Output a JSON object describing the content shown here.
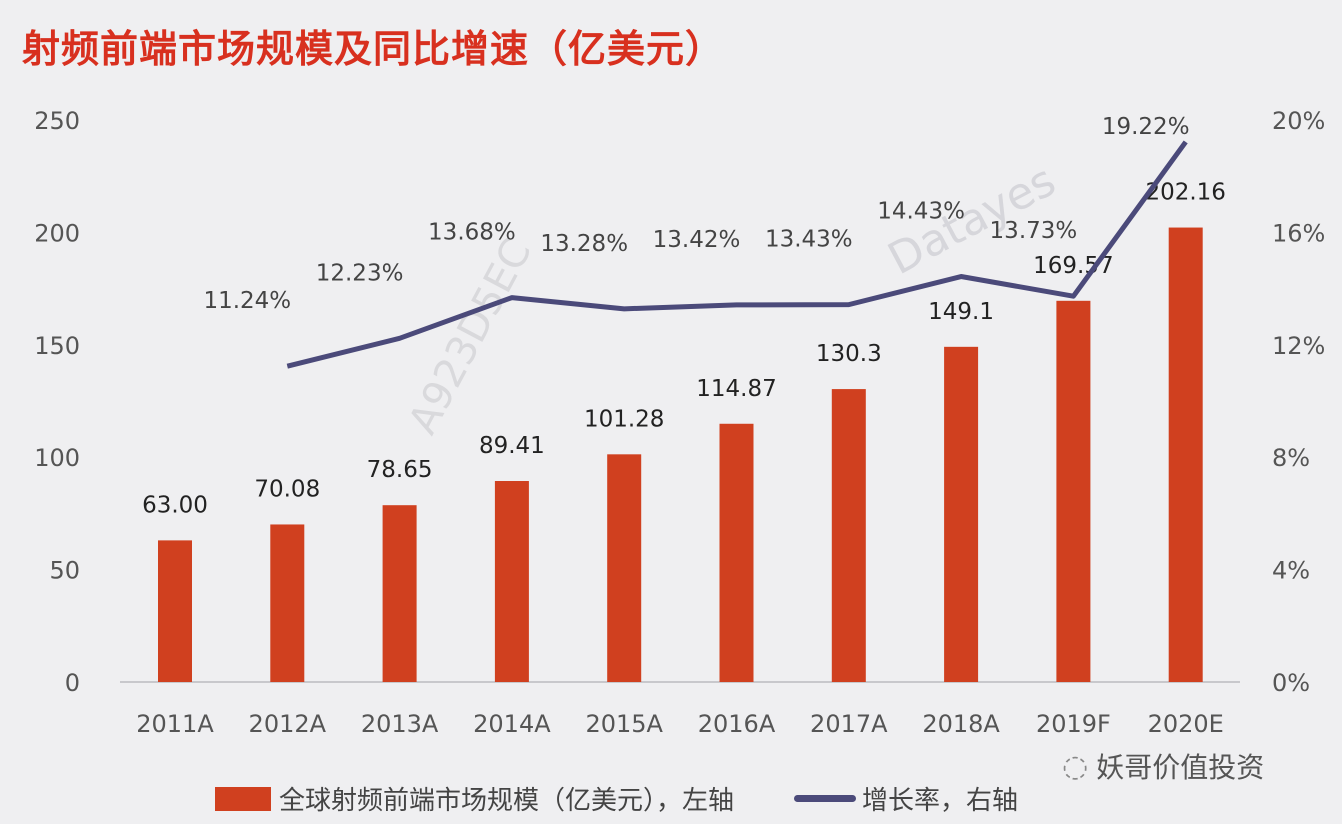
{
  "chart_data": {
    "type": "bar+line",
    "title": "射频前端市场规模及同比增速（亿美元）",
    "categories": [
      "2011A",
      "2012A",
      "2013A",
      "2014A",
      "2015A",
      "2016A",
      "2017A",
      "2018A",
      "2019F",
      "2020E"
    ],
    "series": [
      {
        "name": "全球射频前端市场规模（亿美元），左轴",
        "type": "bar",
        "axis": "left",
        "color": "#d0401f",
        "values": [
          63.0,
          70.08,
          78.65,
          89.41,
          101.28,
          114.87,
          130.3,
          149.1,
          169.57,
          202.16
        ],
        "labels": [
          "63.00",
          "70.08",
          "78.65",
          "89.41",
          "101.28",
          "114.87",
          "130.3",
          "149.1",
          "169.57",
          "202.16"
        ]
      },
      {
        "name": "增长率，右轴",
        "type": "line",
        "axis": "right",
        "color": "#4b4a7a",
        "values": [
          null,
          11.24,
          12.23,
          13.68,
          13.28,
          13.42,
          13.43,
          14.43,
          13.73,
          19.22
        ],
        "labels": [
          "",
          "11.24%",
          "12.23%",
          "13.68%",
          "13.28%",
          "13.42%",
          "13.43%",
          "14.43%",
          "13.73%",
          "19.22%"
        ]
      }
    ],
    "left_axis": {
      "range": [
        0,
        250
      ],
      "ticks": [
        "0",
        "50",
        "100",
        "150",
        "200",
        "250"
      ]
    },
    "right_axis": {
      "range": [
        0,
        20
      ],
      "ticks": [
        "0%",
        "4%",
        "8%",
        "12%",
        "16%",
        "20%"
      ]
    },
    "grid": false,
    "legend_position": "bottom"
  },
  "watermarks": [
    "A923D5EC",
    "Datayes"
  ],
  "brand": "妖哥价值投资",
  "legend": {
    "bar": "全球射频前端市场规模（亿美元），左轴",
    "line": "增长率，右轴"
  }
}
